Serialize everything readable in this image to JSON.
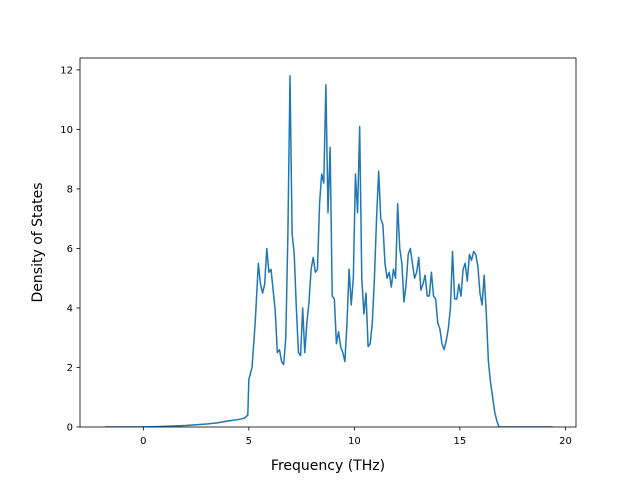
{
  "chart_data": {
    "type": "line",
    "title": "",
    "xlabel": "Frequency (THz)",
    "ylabel": "Density of States",
    "xlim": [
      -3.0,
      20.5
    ],
    "ylim": [
      0,
      12.4
    ],
    "x_ticks": [
      0,
      5,
      10,
      15,
      20
    ],
    "x_tick_labels": [
      "0",
      "5",
      "10",
      "15",
      "20"
    ],
    "y_ticks": [
      0,
      2,
      4,
      6,
      8,
      10,
      12
    ],
    "y_tick_labels": [
      "0",
      "2",
      "4",
      "6",
      "8",
      "10",
      "12"
    ],
    "grid": false,
    "legend": "none",
    "line_color": "#1f77b4",
    "series": [
      {
        "x": [
          -1.8,
          -1.0,
          0.0,
          1.0,
          2.0,
          3.0,
          3.5,
          4.0,
          4.5,
          4.8,
          4.95,
          5.0,
          5.15,
          5.3,
          5.45,
          5.55,
          5.65,
          5.75,
          5.85,
          5.95,
          6.05,
          6.15,
          6.25,
          6.35,
          6.45,
          6.55,
          6.65,
          6.75,
          6.85,
          6.95,
          7.05,
          7.15,
          7.25,
          7.35,
          7.45,
          7.55,
          7.65,
          7.75,
          7.85,
          7.95,
          8.05,
          8.15,
          8.25,
          8.35,
          8.45,
          8.55,
          8.65,
          8.75,
          8.85,
          8.95,
          9.05,
          9.15,
          9.25,
          9.35,
          9.45,
          9.55,
          9.65,
          9.75,
          9.85,
          9.95,
          10.05,
          10.15,
          10.25,
          10.35,
          10.45,
          10.55,
          10.65,
          10.75,
          10.85,
          10.95,
          11.05,
          11.15,
          11.25,
          11.35,
          11.45,
          11.55,
          11.65,
          11.75,
          11.85,
          11.95,
          12.05,
          12.15,
          12.25,
          12.35,
          12.45,
          12.55,
          12.65,
          12.75,
          12.85,
          12.95,
          13.05,
          13.15,
          13.25,
          13.35,
          13.45,
          13.55,
          13.65,
          13.75,
          13.85,
          13.95,
          14.05,
          14.15,
          14.25,
          14.35,
          14.45,
          14.55,
          14.65,
          14.75,
          14.85,
          14.95,
          15.05,
          15.15,
          15.25,
          15.35,
          15.45,
          15.55,
          15.65,
          15.75,
          15.85,
          15.95,
          16.05,
          16.15,
          16.25,
          16.35,
          16.45,
          16.55,
          16.65,
          16.75,
          16.85,
          16.95,
          17.05,
          17.15,
          17.25,
          17.35,
          17.45,
          17.55,
          17.65,
          17.75,
          18.0,
          18.5,
          19.0,
          19.4
        ],
        "y": [
          0,
          0,
          0,
          0.02,
          0.05,
          0.1,
          0.14,
          0.2,
          0.25,
          0.3,
          0.4,
          1.6,
          2.0,
          3.5,
          5.5,
          4.8,
          4.5,
          4.8,
          6.0,
          5.2,
          5.3,
          4.6,
          3.9,
          2.5,
          2.6,
          2.2,
          2.1,
          3.0,
          6.5,
          11.8,
          6.5,
          5.8,
          4.0,
          2.5,
          2.4,
          4.0,
          2.5,
          3.5,
          4.2,
          5.3,
          5.7,
          5.2,
          5.3,
          7.5,
          8.5,
          8.2,
          11.5,
          7.2,
          9.4,
          4.4,
          4.3,
          2.8,
          3.2,
          2.7,
          2.5,
          2.2,
          3.5,
          5.3,
          4.1,
          5.0,
          8.5,
          7.2,
          10.1,
          5.0,
          3.8,
          4.5,
          2.7,
          2.8,
          3.5,
          5.0,
          7.0,
          8.6,
          7.0,
          6.8,
          5.5,
          5.0,
          5.2,
          4.7,
          5.3,
          5.0,
          7.5,
          6.0,
          5.5,
          4.2,
          4.8,
          5.8,
          6.0,
          5.5,
          5.0,
          5.2,
          5.7,
          4.6,
          4.8,
          5.1,
          4.4,
          4.4,
          5.2,
          4.4,
          4.3,
          3.5,
          3.3,
          2.8,
          2.6,
          2.9,
          3.3,
          4.0,
          5.9,
          4.3,
          4.3,
          4.8,
          4.4,
          5.3,
          5.5,
          4.9,
          5.8,
          5.6,
          5.9,
          5.8,
          5.4,
          4.5,
          4.1,
          5.1,
          3.8,
          2.2,
          1.5,
          1.0,
          0.5,
          0.2,
          0.0,
          0,
          0,
          0,
          0,
          0,
          0,
          0,
          0,
          0,
          0,
          0,
          0,
          0
        ]
      }
    ]
  }
}
